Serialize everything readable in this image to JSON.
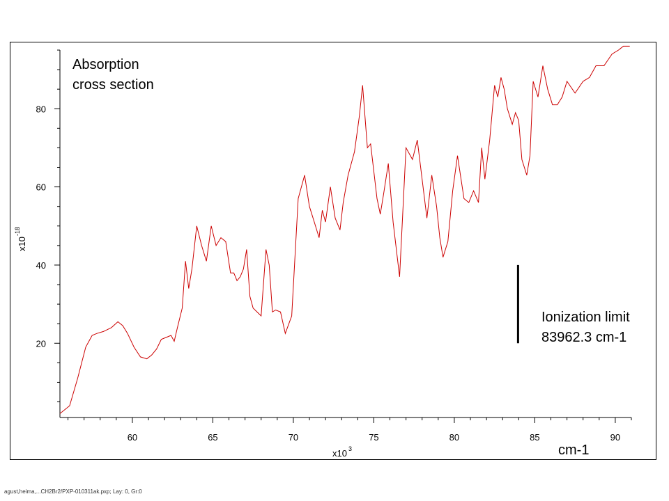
{
  "footer": "agust,heima,...CH2Br2/PXP-010311ak.pxp; Lay: 0, Gr:0",
  "chart_data": {
    "type": "line",
    "title": "",
    "annotation_title_lines": [
      "Absorption",
      "cross section"
    ],
    "xlabel": "cm-1",
    "ylabel": "",
    "x_multiplier": {
      "base": "x10",
      "exp": "3"
    },
    "y_multiplier": {
      "base": "x10",
      "exp": "-18"
    },
    "xlim": [
      55.5,
      91
    ],
    "ylim": [
      1,
      95
    ],
    "xticks": [
      60,
      65,
      70,
      75,
      80,
      85,
      90
    ],
    "yticks": [
      20,
      40,
      60,
      80
    ],
    "grid": false,
    "series_color": "#cc0000",
    "marker_color": "#000000",
    "ionization_limit": {
      "label_lines": [
        "Ionization limit",
        "83962.3 cm-1"
      ],
      "x": 83.96,
      "y_range": [
        20,
        40
      ]
    },
    "series": [
      {
        "x": [
          55.5,
          56.1,
          56.6,
          57.1,
          57.5,
          57.8,
          58.2,
          58.7,
          59.1,
          59.4,
          59.7,
          60.1,
          60.5,
          60.9,
          61.2,
          61.5,
          61.8,
          62.1,
          62.4,
          62.6,
          62.8,
          63.1,
          63.3,
          63.5,
          63.7,
          64.0,
          64.3,
          64.6,
          64.9,
          65.2,
          65.5,
          65.8,
          66.1,
          66.3,
          66.5,
          66.7,
          66.9,
          67.1,
          67.3,
          67.5,
          68.0,
          68.3,
          68.5,
          68.7,
          68.9,
          69.2,
          69.5,
          69.9,
          70.3,
          70.7,
          71.0,
          71.3,
          71.6,
          71.8,
          72.0,
          72.3,
          72.6,
          72.9,
          73.1,
          73.4,
          73.8,
          74.1,
          74.3,
          74.6,
          74.8,
          75.0,
          75.2,
          75.4,
          75.6,
          75.9,
          76.2,
          76.6,
          77.0,
          77.4,
          77.7,
          78.0,
          78.3,
          78.6,
          78.9,
          79.1,
          79.3,
          79.6,
          79.9,
          80.2,
          80.6,
          80.9,
          81.2,
          81.5,
          81.7,
          81.9,
          82.2,
          82.5,
          82.7,
          82.9,
          83.1,
          83.3,
          83.6,
          83.8,
          84.0,
          84.2,
          84.5,
          84.7,
          84.9,
          85.2,
          85.5,
          85.8,
          86.1,
          86.4,
          86.7,
          87.0,
          87.5,
          88.0,
          88.4,
          88.8,
          89.3,
          89.8,
          90.2,
          90.5,
          90.9
        ],
        "y": [
          2,
          4,
          11,
          19,
          22,
          22.5,
          23,
          24,
          25.5,
          24.5,
          22.5,
          19,
          16.5,
          16,
          17,
          18.5,
          21,
          21.5,
          22,
          20.5,
          24,
          29,
          41,
          34,
          39,
          50,
          45,
          41,
          50,
          45,
          47,
          46,
          38,
          38,
          36,
          37,
          39,
          44,
          32,
          29,
          27,
          44,
          40,
          28,
          28.5,
          28,
          22.5,
          27,
          57,
          63,
          55,
          51,
          47,
          54,
          51,
          60,
          52,
          49,
          56,
          63,
          69,
          78,
          86,
          70,
          71,
          64,
          57,
          53,
          58,
          66,
          51,
          37,
          70,
          67,
          72,
          62,
          52,
          63,
          55,
          47,
          42,
          46,
          59,
          68,
          57,
          56,
          59,
          56,
          70,
          62,
          72,
          86,
          83,
          88,
          85,
          80,
          76,
          79,
          77,
          67,
          63,
          68,
          87,
          83,
          91,
          85,
          81,
          81,
          83,
          87,
          84,
          87,
          88,
          91,
          91,
          94,
          95,
          96,
          96
        ]
      }
    ]
  }
}
